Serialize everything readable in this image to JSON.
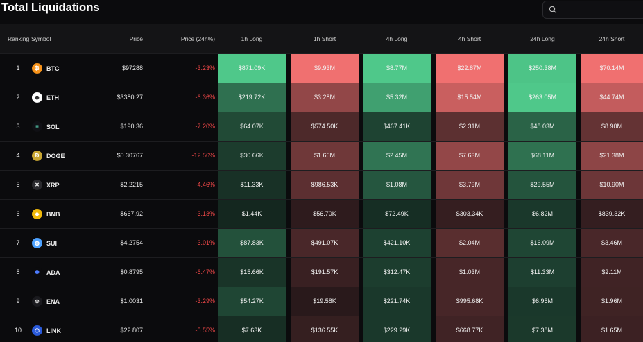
{
  "title": "Total Liquidations",
  "search": {
    "placeholder": ""
  },
  "headers": {
    "ranking": "Ranking",
    "symbol": "Symbol",
    "price": "Price",
    "change": "Price (24h%)",
    "h1_long": "1h Long",
    "h1_short": "1h Short",
    "h4_long": "4h Long",
    "h4_short": "4h Short",
    "h24_long": "24h Long",
    "h24_short": "24h Short"
  },
  "colors": {
    "long_max": "#4fc88a",
    "short_max": "#f07070",
    "negative_text": "#f04848"
  },
  "rows": [
    {
      "rank": "1",
      "symbol": "BTC",
      "icon": "bitcoin-icon",
      "price": "$97288",
      "change": "-3.23%",
      "h1_long": "$871.09K",
      "h1_short": "$9.93M",
      "h4_long": "$8.77M",
      "h4_short": "$22.87M",
      "h24_long": "$250.38M",
      "h24_short": "$70.14M"
    },
    {
      "rank": "2",
      "symbol": "ETH",
      "icon": "ethereum-icon",
      "price": "$3380.27",
      "change": "-6.36%",
      "h1_long": "$219.72K",
      "h1_short": "$3.28M",
      "h4_long": "$5.32M",
      "h4_short": "$15.54M",
      "h24_long": "$263.05M",
      "h24_short": "$44.74M"
    },
    {
      "rank": "3",
      "symbol": "SOL",
      "icon": "solana-icon",
      "price": "$190.36",
      "change": "-7.20%",
      "h1_long": "$64.07K",
      "h1_short": "$574.50K",
      "h4_long": "$467.41K",
      "h4_short": "$2.31M",
      "h24_long": "$48.03M",
      "h24_short": "$8.90M"
    },
    {
      "rank": "4",
      "symbol": "DOGE",
      "icon": "dogecoin-icon",
      "price": "$0.30767",
      "change": "-12.56%",
      "h1_long": "$30.66K",
      "h1_short": "$1.66M",
      "h4_long": "$2.45M",
      "h4_short": "$7.63M",
      "h24_long": "$68.11M",
      "h24_short": "$21.38M"
    },
    {
      "rank": "5",
      "symbol": "XRP",
      "icon": "xrp-icon",
      "price": "$2.2215",
      "change": "-4.46%",
      "h1_long": "$11.33K",
      "h1_short": "$986.53K",
      "h4_long": "$1.08M",
      "h4_short": "$3.79M",
      "h24_long": "$29.55M",
      "h24_short": "$10.90M"
    },
    {
      "rank": "6",
      "symbol": "BNB",
      "icon": "bnb-icon",
      "price": "$667.92",
      "change": "-3.13%",
      "h1_long": "$1.44K",
      "h1_short": "$56.70K",
      "h4_long": "$72.49K",
      "h4_short": "$303.34K",
      "h24_long": "$6.82M",
      "h24_short": "$839.32K"
    },
    {
      "rank": "7",
      "symbol": "SUI",
      "icon": "sui-icon",
      "price": "$4.2754",
      "change": "-3.01%",
      "h1_long": "$87.83K",
      "h1_short": "$491.07K",
      "h4_long": "$421.10K",
      "h4_short": "$2.04M",
      "h24_long": "$16.09M",
      "h24_short": "$3.46M"
    },
    {
      "rank": "8",
      "symbol": "ADA",
      "icon": "cardano-icon",
      "price": "$0.8795",
      "change": "-6.47%",
      "h1_long": "$15.66K",
      "h1_short": "$191.57K",
      "h4_long": "$312.47K",
      "h4_short": "$1.03M",
      "h24_long": "$11.33M",
      "h24_short": "$2.11M"
    },
    {
      "rank": "9",
      "symbol": "ENA",
      "icon": "ethena-icon",
      "price": "$1.0031",
      "change": "-3.29%",
      "h1_long": "$54.27K",
      "h1_short": "$19.58K",
      "h4_long": "$221.74K",
      "h4_short": "$995.68K",
      "h24_long": "$6.95M",
      "h24_short": "$1.96M"
    },
    {
      "rank": "10",
      "symbol": "LINK",
      "icon": "chainlink-icon",
      "price": "$22.807",
      "change": "-5.55%",
      "h1_long": "$7.63K",
      "h1_short": "$136.55K",
      "h4_long": "$229.29K",
      "h4_short": "$668.77K",
      "h24_long": "$7.38M",
      "h24_short": "$1.65M"
    }
  ]
}
